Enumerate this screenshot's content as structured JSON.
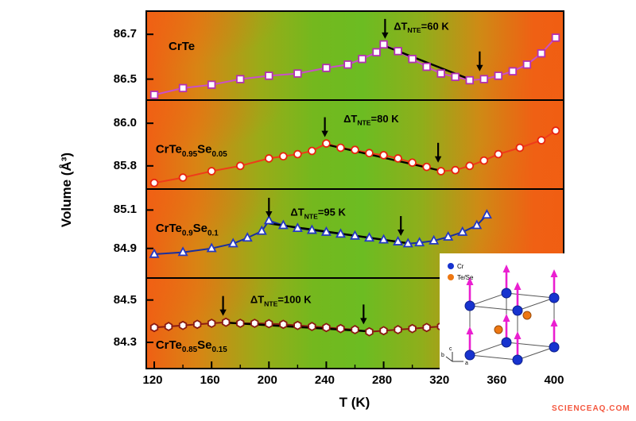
{
  "watermark": "SCIENCEAQ.COM",
  "inset": {
    "legend": [
      {
        "label": "Cr",
        "color": "#1733cf"
      },
      {
        "label": "Te/Se",
        "color": "#ed7712"
      }
    ],
    "axes": [
      "c",
      "b",
      "a"
    ]
  },
  "chart_data": {
    "type": "line",
    "xlabel": "T (K)",
    "ylabel": "Volume (Å³)",
    "xlim": [
      115,
      405
    ],
    "x_ticks": [
      120,
      160,
      200,
      240,
      280,
      320,
      360,
      400
    ],
    "x_minor_ticks": [
      140,
      180,
      220,
      260,
      300,
      340,
      380
    ],
    "panels": [
      {
        "name": "CrTe",
        "label_parts": [
          {
            "t": "CrTe"
          }
        ],
        "label_pos": {
          "x": 130,
          "y": 86.63
        },
        "marker": "square",
        "marker_color": "#b42fb4",
        "line_color": "#c94fc9",
        "ylim": [
          86.41,
          86.8
        ],
        "yticks": [
          86.7,
          86.5
        ],
        "x": [
          120,
          140,
          160,
          180,
          200,
          220,
          240,
          255,
          265,
          275,
          280,
          290,
          300,
          310,
          320,
          330,
          340,
          350,
          360,
          370,
          380,
          390,
          400
        ],
        "y": [
          86.43,
          86.46,
          86.475,
          86.5,
          86.515,
          86.525,
          86.55,
          86.565,
          86.59,
          86.62,
          86.655,
          86.625,
          86.59,
          86.555,
          86.525,
          86.51,
          86.495,
          86.5,
          86.515,
          86.535,
          86.565,
          86.615,
          86.685
        ],
        "nte_line": {
          "x1": 280,
          "y1": 86.65,
          "x2": 341,
          "y2": 86.497
        },
        "arrows": [
          {
            "x": 281,
            "y": 86.68
          },
          {
            "x": 347,
            "y": 86.535
          }
        ],
        "delta_parts": [
          {
            "t": "ΔT"
          },
          {
            "t": "NTE",
            "sub": true
          },
          {
            "t": "=60 K"
          }
        ],
        "delta_pos": {
          "x": 287,
          "y": 86.72
        }
      },
      {
        "name": "CrTe0.95Se0.05",
        "label_parts": [
          {
            "t": "CrTe"
          },
          {
            "t": "0.95",
            "sub": true
          },
          {
            "t": "Se"
          },
          {
            "t": "0.05",
            "sub": true
          }
        ],
        "label_pos": {
          "x": 121,
          "y": 85.86
        },
        "marker": "circle",
        "marker_color": "#e8230f",
        "line_color": "#ef3b1a",
        "ylim": [
          85.695,
          86.105
        ],
        "yticks": [
          86.0,
          85.8
        ],
        "x": [
          120,
          140,
          160,
          180,
          200,
          210,
          220,
          230,
          240,
          250,
          260,
          270,
          280,
          290,
          300,
          310,
          320,
          330,
          340,
          350,
          360,
          375,
          390,
          400
        ],
        "y": [
          85.72,
          85.745,
          85.775,
          85.8,
          85.835,
          85.845,
          85.855,
          85.87,
          85.905,
          85.885,
          85.875,
          85.86,
          85.85,
          85.835,
          85.815,
          85.795,
          85.775,
          85.78,
          85.8,
          85.825,
          85.855,
          85.885,
          85.92,
          85.965
        ],
        "nte_line": {
          "x1": 240,
          "y1": 85.9,
          "x2": 320,
          "y2": 85.777
        },
        "arrows": [
          {
            "x": 239,
            "y": 85.935
          },
          {
            "x": 318,
            "y": 85.815
          }
        ],
        "delta_parts": [
          {
            "t": "ΔT"
          },
          {
            "t": "NTE",
            "sub": true
          },
          {
            "t": "=80 K"
          }
        ],
        "delta_pos": {
          "x": 252,
          "y": 86.005
        }
      },
      {
        "name": "CrTe0.9Se0.1",
        "label_parts": [
          {
            "t": "CrTe"
          },
          {
            "t": "0.9",
            "sub": true
          },
          {
            "t": "Se"
          },
          {
            "t": "0.1",
            "sub": true
          }
        ],
        "label_pos": {
          "x": 121,
          "y": 84.985
        },
        "marker": "triangle",
        "marker_color": "#2438c4",
        "line_color": "#1a2f9e",
        "ylim": [
          84.75,
          85.205
        ],
        "yticks": [
          85.1,
          84.9
        ],
        "x": [
          120,
          140,
          160,
          175,
          185,
          195,
          200,
          210,
          220,
          230,
          240,
          250,
          260,
          270,
          280,
          290,
          297,
          305,
          315,
          325,
          335,
          345,
          352
        ],
        "y": [
          84.87,
          84.88,
          84.9,
          84.925,
          84.955,
          84.99,
          85.045,
          85.02,
          85.005,
          84.995,
          84.985,
          84.975,
          84.965,
          84.955,
          84.945,
          84.935,
          84.925,
          84.93,
          84.94,
          84.96,
          84.985,
          85.02,
          85.075
        ],
        "nte_line": {
          "x1": 200,
          "y1": 85.03,
          "x2": 297,
          "y2": 84.927
        },
        "arrows": [
          {
            "x": 200,
            "y": 85.06
          },
          {
            "x": 292,
            "y": 84.965
          }
        ],
        "delta_parts": [
          {
            "t": "ΔT"
          },
          {
            "t": "NTE",
            "sub": true
          },
          {
            "t": "=95 K"
          }
        ],
        "delta_pos": {
          "x": 215,
          "y": 85.07
        }
      },
      {
        "name": "CrTe0.85Se0.15",
        "label_parts": [
          {
            "t": "CrTe"
          },
          {
            "t": "0.85",
            "sub": true
          },
          {
            "t": "Se"
          },
          {
            "t": "0.15",
            "sub": true
          }
        ],
        "label_pos": {
          "x": 121,
          "y": 84.27
        },
        "marker": "hexagon",
        "marker_color": "#8b1a12",
        "line_color": "#8b1a12",
        "ylim": [
          84.18,
          84.6
        ],
        "yticks": [
          84.5,
          84.3
        ],
        "x": [
          120,
          130,
          140,
          150,
          160,
          170,
          180,
          190,
          200,
          210,
          220,
          230,
          240,
          250,
          260,
          270,
          280,
          290,
          300,
          310,
          320
        ],
        "y": [
          84.37,
          84.375,
          84.38,
          84.385,
          84.39,
          84.395,
          84.39,
          84.39,
          84.388,
          84.385,
          84.38,
          84.375,
          84.37,
          84.365,
          84.36,
          84.35,
          84.355,
          84.36,
          84.365,
          84.37,
          84.375
        ],
        "nte_line": {
          "x1": 170,
          "y1": 84.393,
          "x2": 270,
          "y2": 84.352
        },
        "arrows": [
          {
            "x": 168,
            "y": 84.425
          },
          {
            "x": 266,
            "y": 84.385
          }
        ],
        "delta_parts": [
          {
            "t": "ΔT"
          },
          {
            "t": "NTE",
            "sub": true
          },
          {
            "t": "=100 K"
          }
        ],
        "delta_pos": {
          "x": 187,
          "y": 84.485
        }
      }
    ]
  }
}
